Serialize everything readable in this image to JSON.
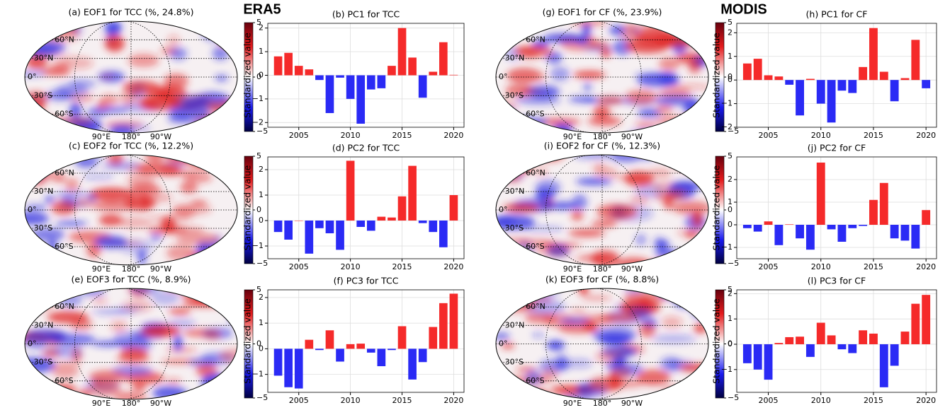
{
  "headers": [
    "ERA5",
    "MODIS"
  ],
  "colorbar": {
    "lim": [
      -5,
      5
    ],
    "ticks": [
      5,
      0,
      {
        "value": -5,
        "label": "−5"
      }
    ]
  },
  "map_grid": {
    "lat": [
      60,
      30,
      0,
      -30,
      -60
    ],
    "lat_labels": [
      "60°N",
      "30°N",
      "0°",
      "30°S",
      "60°S"
    ],
    "lon_labels": [
      "90°E",
      "180°",
      "90°W"
    ]
  },
  "maps": [
    {
      "title": "(a) EOF1 for TCC (%, 24.8%)"
    },
    {
      "title": "(c) EOF2 for TCC (%, 12.2%)"
    },
    {
      "title": "(e) EOF3 for TCC (%, 8.9%)"
    },
    {
      "title": "(g) EOF1 for CF (%, 23.9%)"
    },
    {
      "title": "(i) EOF2 for CF (%, 12.3%)"
    },
    {
      "title": "(k) EOF3 for CF (%, 8.8%)"
    }
  ],
  "chart_data": [
    {
      "type": "bar",
      "title": "(b) PC1 for TCC",
      "y_label": "Standardized value",
      "positive_color": "#f52a2a",
      "negative_color": "#2a2af5",
      "grid": true,
      "x": [
        2003,
        2004,
        2005,
        2006,
        2007,
        2008,
        2009,
        2010,
        2011,
        2012,
        2013,
        2014,
        2015,
        2016,
        2017,
        2018,
        2019,
        2020
      ],
      "values": [
        0.8,
        0.95,
        0.4,
        0.25,
        -0.2,
        -1.6,
        -0.1,
        -1.0,
        -2.05,
        -0.6,
        -0.55,
        0.4,
        2.0,
        0.75,
        -0.95,
        0.15,
        1.4,
        0.02
      ],
      "xlim": [
        2002,
        2021
      ],
      "xticks": [
        2005,
        2010,
        2015,
        2020
      ],
      "ylim": [
        -2.2,
        2.2
      ],
      "yticks": [
        {
          "value": -2,
          "label": "−2"
        },
        {
          "value": -1,
          "label": "−1"
        },
        0,
        1,
        2
      ]
    },
    {
      "type": "bar",
      "title": "(d) PC2 for TCC",
      "y_label": "Standardized value",
      "positive_color": "#f52a2a",
      "negative_color": "#2a2af5",
      "grid": true,
      "x": [
        2003,
        2004,
        2005,
        2006,
        2007,
        2008,
        2009,
        2010,
        2011,
        2012,
        2013,
        2014,
        2015,
        2016,
        2017,
        2018,
        2019,
        2020
      ],
      "values": [
        -0.45,
        -0.75,
        0,
        -1.3,
        -0.3,
        -0.5,
        -1.15,
        2.35,
        -0.25,
        -0.4,
        0.15,
        0.12,
        0.95,
        2.15,
        -0.1,
        -0.45,
        -1.05,
        1.0
      ],
      "xlim": [
        2002,
        2021
      ],
      "xticks": [
        2005,
        2010,
        2015,
        2020
      ],
      "ylim": [
        -1.5,
        2.5
      ],
      "yticks": [
        {
          "value": -1,
          "label": "−1"
        },
        0,
        1,
        2
      ]
    },
    {
      "type": "bar",
      "title": "(f) PC3 for TCC",
      "y_label": "Standardized value",
      "positive_color": "#f52a2a",
      "negative_color": "#2a2af5",
      "grid": true,
      "x": [
        2003,
        2004,
        2005,
        2006,
        2007,
        2008,
        2009,
        2010,
        2011,
        2012,
        2013,
        2014,
        2015,
        2016,
        2017,
        2018,
        2019,
        2020
      ],
      "values": [
        -1.05,
        -1.5,
        -1.55,
        0.35,
        -0.05,
        0.72,
        -0.5,
        0.18,
        0.2,
        -0.15,
        -0.68,
        -0.05,
        0.88,
        -1.2,
        -0.52,
        0.85,
        1.78,
        2.15
      ],
      "xlim": [
        2002,
        2021
      ],
      "xticks": [
        2005,
        2010,
        2015,
        2020
      ],
      "ylim": [
        -1.7,
        2.3
      ],
      "yticks": [
        {
          "value": -1,
          "label": "−1"
        },
        0,
        1,
        2
      ]
    },
    {
      "type": "bar",
      "title": "(h) PC1 for CF",
      "y_label": "Standardized value",
      "positive_color": "#f52a2a",
      "negative_color": "#2a2af5",
      "grid": true,
      "x": [
        2003,
        2004,
        2005,
        2006,
        2007,
        2008,
        2009,
        2010,
        2011,
        2012,
        2013,
        2014,
        2015,
        2016,
        2017,
        2018,
        2019,
        2020
      ],
      "values": [
        0.7,
        0.9,
        0.2,
        0.15,
        -0.2,
        -1.5,
        0.05,
        -1.0,
        -1.8,
        -0.45,
        -0.55,
        0.55,
        2.2,
        0.35,
        -0.9,
        0.08,
        1.7,
        -0.35
      ],
      "xlim": [
        2002,
        2021
      ],
      "xticks": [
        2005,
        2010,
        2015,
        2020
      ],
      "ylim": [
        -2.0,
        2.4
      ],
      "yticks": [
        {
          "value": -2,
          "label": "−2"
        },
        {
          "value": -1,
          "label": "−1"
        },
        0,
        1,
        2
      ]
    },
    {
      "type": "bar",
      "title": "(j) PC2 for CF",
      "y_label": "Standardized value",
      "positive_color": "#f52a2a",
      "negative_color": "#2a2af5",
      "grid": true,
      "x": [
        2003,
        2004,
        2005,
        2006,
        2007,
        2008,
        2009,
        2010,
        2011,
        2012,
        2013,
        2014,
        2015,
        2016,
        2017,
        2018,
        2019,
        2020
      ],
      "values": [
        -0.15,
        -0.3,
        0.15,
        -0.9,
        0.02,
        -0.6,
        -1.1,
        2.75,
        -0.2,
        -0.75,
        -0.15,
        -0.05,
        1.1,
        1.85,
        -0.6,
        -0.7,
        -1.05,
        0.65
      ],
      "xlim": [
        2002,
        2021
      ],
      "xticks": [
        2005,
        2010,
        2015,
        2020
      ],
      "ylim": [
        -1.5,
        3.0
      ],
      "yticks": [
        {
          "value": -1,
          "label": "−1"
        },
        0,
        1,
        2
      ]
    },
    {
      "type": "bar",
      "title": "(l) PC3 for CF",
      "y_label": "Standardized value",
      "positive_color": "#f52a2a",
      "negative_color": "#2a2af5",
      "grid": true,
      "x": [
        2003,
        2004,
        2005,
        2006,
        2007,
        2008,
        2009,
        2010,
        2011,
        2012,
        2013,
        2014,
        2015,
        2016,
        2017,
        2018,
        2019,
        2020
      ],
      "values": [
        -0.75,
        -1.0,
        -1.4,
        0.05,
        0.28,
        0.3,
        -0.5,
        0.85,
        0.35,
        -0.2,
        -0.35,
        0.55,
        0.42,
        -1.7,
        -0.85,
        0.5,
        1.6,
        1.95
      ],
      "xlim": [
        2002,
        2021
      ],
      "xticks": [
        2005,
        2010,
        2015,
        2020
      ],
      "ylim": [
        -1.9,
        2.15
      ],
      "yticks": [
        {
          "value": -1,
          "label": "−1"
        },
        0,
        1,
        2
      ]
    }
  ]
}
